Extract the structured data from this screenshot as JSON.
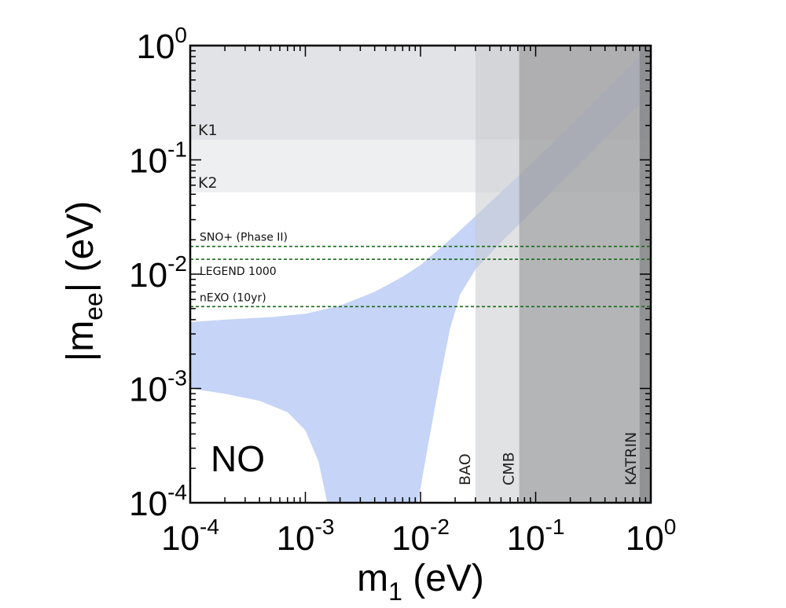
{
  "chart_data": {
    "type": "area",
    "xlabel": "m1 (eV)",
    "ylabel": "|mee| (eV)",
    "x_scale": "log",
    "y_scale": "log",
    "xlim": [
      0.0001,
      1.0
    ],
    "ylim": [
      0.0001,
      1.0
    ],
    "xticks": [
      {
        "label": "10",
        "exp": "-4",
        "value": 0.0001
      },
      {
        "label": "10",
        "exp": "-3",
        "value": 0.001
      },
      {
        "label": "10",
        "exp": "-2",
        "value": 0.01
      },
      {
        "label": "10",
        "exp": "-1",
        "value": 0.1
      },
      {
        "label": "10",
        "exp": "0",
        "value": 1.0
      }
    ],
    "yticks": [
      {
        "label": "10",
        "exp": "-4",
        "value": 0.0001
      },
      {
        "label": "10",
        "exp": "-3",
        "value": 0.001
      },
      {
        "label": "10",
        "exp": "-2",
        "value": 0.01
      },
      {
        "label": "10",
        "exp": "-1",
        "value": 0.1
      },
      {
        "label": "10",
        "exp": "0",
        "value": 1.0
      }
    ],
    "ordering_label": "NO",
    "allowed_region": {
      "color": "#c5d4f7",
      "upper": [
        [
          0.0001,
          0.0038
        ],
        [
          0.0002,
          0.004
        ],
        [
          0.0005,
          0.0042
        ],
        [
          0.001,
          0.0045
        ],
        [
          0.002,
          0.0053
        ],
        [
          0.004,
          0.007
        ],
        [
          0.007,
          0.0095
        ],
        [
          0.01,
          0.012
        ],
        [
          0.02,
          0.022
        ],
        [
          0.05,
          0.052
        ],
        [
          0.1,
          0.1
        ],
        [
          0.3,
          0.3
        ],
        [
          0.8,
          0.8
        ]
      ],
      "lower": [
        [
          0.8,
          0.31
        ],
        [
          0.3,
          0.115
        ],
        [
          0.1,
          0.038
        ],
        [
          0.05,
          0.019
        ],
        [
          0.03,
          0.011
        ],
        [
          0.022,
          0.0066
        ],
        [
          0.018,
          0.0033
        ],
        [
          0.015,
          0.0013
        ],
        [
          0.012,
          0.00038
        ],
        [
          0.0095,
          0.0001
        ],
        [
          0.00155,
          0.0001
        ],
        [
          0.0013,
          0.00023
        ],
        [
          0.001,
          0.00043
        ],
        [
          0.0007,
          0.00062
        ],
        [
          0.0004,
          0.00078
        ],
        [
          0.0002,
          0.0009
        ],
        [
          0.0001,
          0.001
        ]
      ]
    },
    "horizontal_exclusions": [
      {
        "label": "K1",
        "y_min": 0.15,
        "y_max": 1.0,
        "color": "#e2e3e6"
      },
      {
        "label": "K2",
        "y_min": 0.052,
        "y_max": 0.15,
        "color": "#eeeff1"
      }
    ],
    "vertical_exclusions": [
      {
        "label": "BAO",
        "x_min": 0.03,
        "x_max": 1.0,
        "color": "#c9cacd",
        "opacity": 0.55
      },
      {
        "label": "CMB",
        "x_min": 0.072,
        "x_max": 1.0,
        "color": "#8f9092",
        "opacity": 0.55
      },
      {
        "label": "KATRIN",
        "x_min": 0.8,
        "x_max": 1.0,
        "color": "#6e6f71",
        "opacity": 0.5
      }
    ],
    "sensitivity_lines": [
      {
        "label": "SNO+ (Phase II)",
        "y": 0.0175,
        "color": "#1a6a1a"
      },
      {
        "label": "LEGEND 1000",
        "y": 0.0135,
        "color": "#1a6a1a"
      },
      {
        "label": "nEXO (10yr)",
        "y": 0.0052,
        "color": "#1a6a1a"
      }
    ],
    "grid": false
  }
}
